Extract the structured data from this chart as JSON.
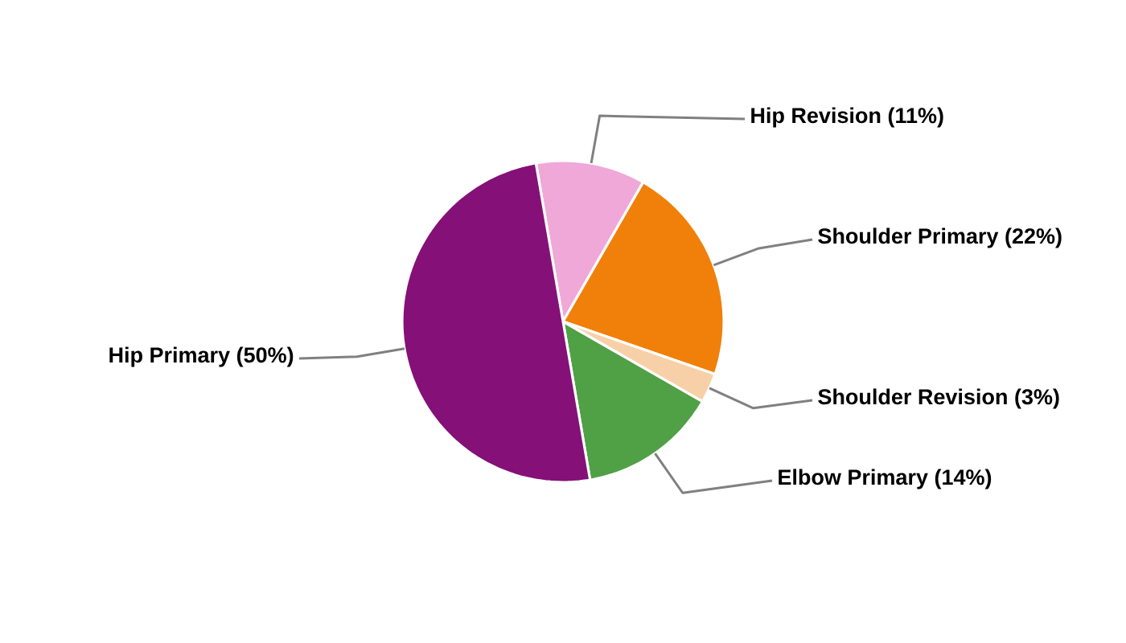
{
  "chart_data": {
    "type": "pie",
    "categories": [
      "Hip Revision",
      "Shoulder Primary",
      "Shoulder Revision",
      "Elbow Primary",
      "Hip Primary"
    ],
    "values": [
      11,
      22,
      3,
      14,
      50
    ],
    "value_labels": [
      "(11%)",
      "(22%)",
      "(3%)",
      "(14%)",
      "(50%)"
    ],
    "colors": [
      "#f0a8d8",
      "#f0800a",
      "#f8d0a8",
      "#50a046",
      "#841078"
    ]
  }
}
